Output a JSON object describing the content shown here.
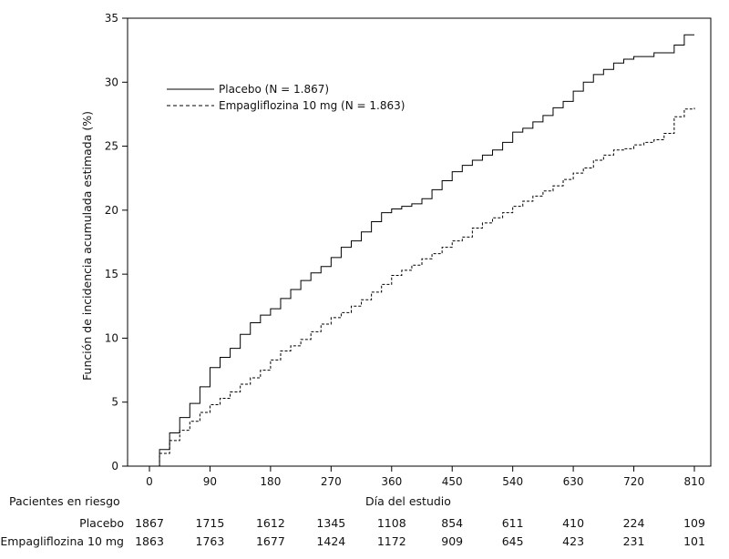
{
  "chart_data": {
    "type": "line",
    "xlabel": "Día del estudio",
    "ylabel": "Función de incidencia acumulada estimada (%)",
    "xlim": [
      0,
      810
    ],
    "ylim": [
      0,
      35
    ],
    "x_ticks": [
      0,
      90,
      180,
      270,
      360,
      450,
      540,
      630,
      720,
      810
    ],
    "y_ticks": [
      0,
      5,
      10,
      15,
      20,
      25,
      30,
      35
    ],
    "legend_position": "top-left",
    "series": [
      {
        "name": "Placebo (N = 1.867)",
        "line_style": "solid",
        "x": [
          0,
          15,
          30,
          45,
          60,
          75,
          90,
          105,
          120,
          135,
          150,
          165,
          180,
          195,
          210,
          225,
          240,
          255,
          270,
          285,
          300,
          315,
          330,
          345,
          360,
          375,
          390,
          405,
          420,
          435,
          450,
          465,
          480,
          495,
          510,
          525,
          540,
          555,
          570,
          585,
          600,
          615,
          630,
          645,
          660,
          675,
          690,
          705,
          720,
          735,
          750,
          765,
          780,
          795,
          810
        ],
        "y": [
          0,
          1.3,
          2.6,
          3.8,
          4.9,
          6.2,
          7.7,
          8.5,
          9.2,
          10.3,
          11.2,
          11.8,
          12.3,
          13.1,
          13.8,
          14.5,
          15.1,
          15.6,
          16.3,
          17.1,
          17.6,
          18.3,
          19.1,
          19.8,
          20.1,
          20.3,
          20.5,
          20.9,
          21.6,
          22.3,
          23.0,
          23.5,
          23.9,
          24.3,
          24.7,
          25.3,
          26.1,
          26.4,
          26.9,
          27.4,
          28.0,
          28.5,
          29.3,
          30.0,
          30.6,
          31.0,
          31.5,
          31.8,
          32.0,
          32.0,
          32.3,
          32.3,
          32.9,
          33.7,
          33.7
        ]
      },
      {
        "name": "Empagliflozina 10 mg (N = 1.863)",
        "line_style": "dashed",
        "x": [
          0,
          15,
          30,
          45,
          60,
          75,
          90,
          105,
          120,
          135,
          150,
          165,
          180,
          195,
          210,
          225,
          240,
          255,
          270,
          285,
          300,
          315,
          330,
          345,
          360,
          375,
          390,
          405,
          420,
          435,
          450,
          465,
          480,
          495,
          510,
          525,
          540,
          555,
          570,
          585,
          600,
          615,
          630,
          645,
          660,
          675,
          690,
          705,
          720,
          735,
          750,
          765,
          780,
          795,
          810
        ],
        "y": [
          0,
          1.0,
          2.0,
          2.8,
          3.5,
          4.2,
          4.8,
          5.3,
          5.8,
          6.4,
          6.9,
          7.5,
          8.3,
          9.0,
          9.4,
          9.9,
          10.5,
          11.1,
          11.6,
          12.0,
          12.5,
          13.0,
          13.6,
          14.2,
          14.9,
          15.3,
          15.7,
          16.2,
          16.6,
          17.1,
          17.6,
          17.9,
          18.6,
          19.0,
          19.4,
          19.8,
          20.3,
          20.7,
          21.1,
          21.5,
          21.9,
          22.4,
          22.9,
          23.3,
          23.9,
          24.3,
          24.7,
          24.8,
          25.1,
          25.3,
          25.5,
          26.0,
          27.3,
          27.9,
          28.0
        ]
      }
    ]
  },
  "risk_table": {
    "heading": "Pacientes  en  riesgo",
    "xtitle": "Día  del  estudio",
    "rows": [
      {
        "label": "Placebo",
        "values": [
          "1867",
          "1715",
          "1612",
          "1345",
          "1108",
          "854",
          "611",
          "410",
          "224",
          "109"
        ]
      },
      {
        "label": "Empagliflozina 10 mg",
        "values": [
          "1863",
          "1763",
          "1677",
          "1424",
          "1172",
          "909",
          "645",
          "423",
          "231",
          "101"
        ]
      }
    ]
  }
}
